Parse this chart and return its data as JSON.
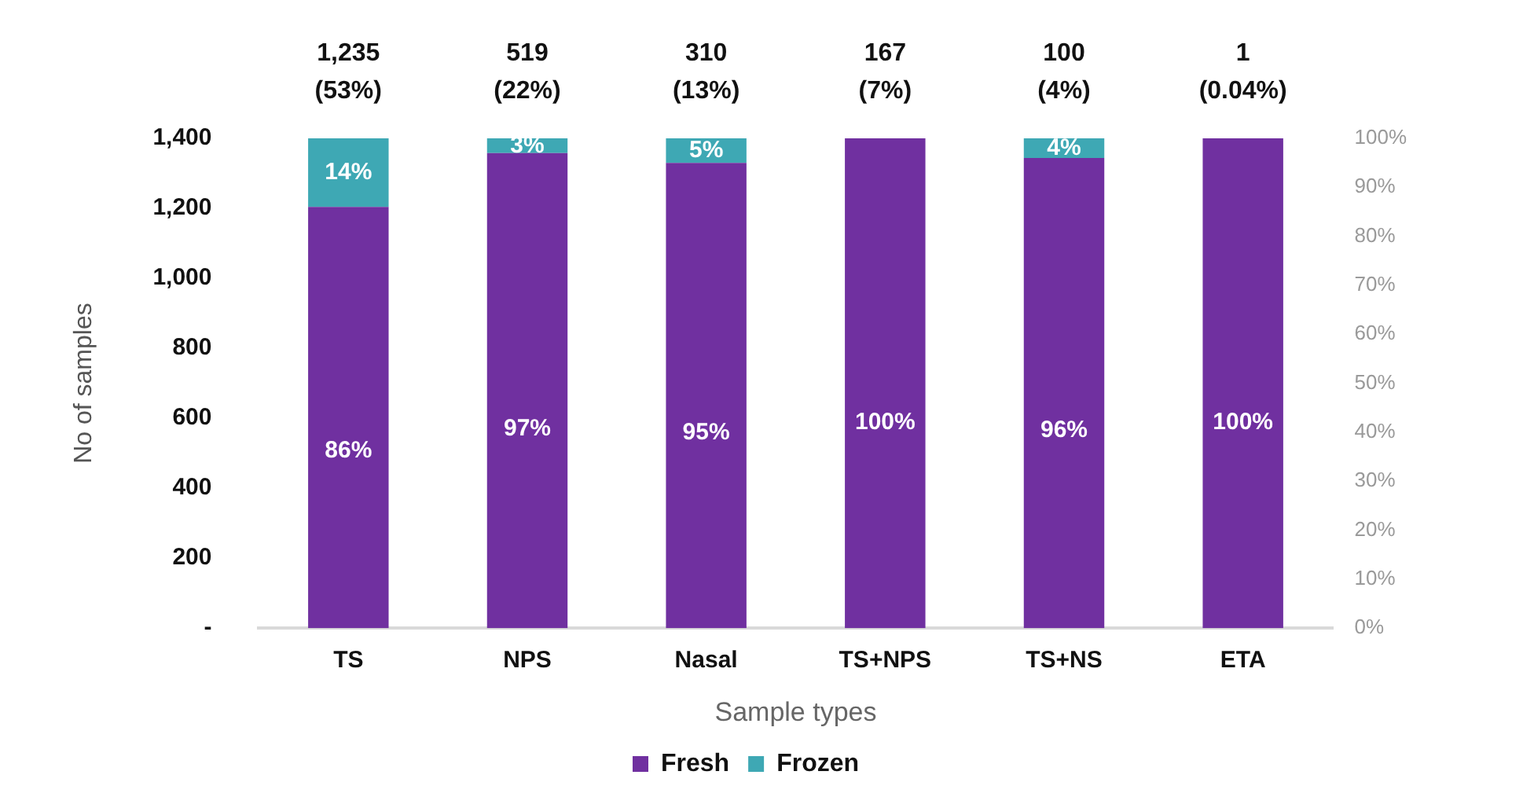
{
  "chart_data": {
    "type": "bar",
    "stacked": true,
    "xlabel": "Sample types",
    "ylabel": "No of samples",
    "categories": [
      "TS",
      "NPS",
      "Nasal",
      "TS+NPS",
      "TS+NS",
      "ETA"
    ],
    "series": [
      {
        "name": "Fresh",
        "color": "#7030a0",
        "axis": "y2",
        "values": [
          86,
          97,
          95,
          100,
          96,
          100
        ],
        "value_labels": [
          "86%",
          "97%",
          "95%",
          "100%",
          "96%",
          "100%"
        ]
      },
      {
        "name": "Frozen",
        "color": "#3ea8b4",
        "axis": "y2",
        "values": [
          14,
          3,
          5,
          0,
          4,
          0
        ],
        "value_labels": [
          "14%",
          "3%",
          "5%",
          null,
          "4%",
          null
        ]
      }
    ],
    "y2lim": [
      0,
      100
    ],
    "y2ticks": [
      {
        "value": 0,
        "label": "0%"
      },
      {
        "value": 10,
        "label": "10%"
      },
      {
        "value": 20,
        "label": "20%"
      },
      {
        "value": 30,
        "label": "30%"
      },
      {
        "value": 40,
        "label": "40%"
      },
      {
        "value": 50,
        "label": "50%"
      },
      {
        "value": 60,
        "label": "60%"
      },
      {
        "value": 70,
        "label": "70%"
      },
      {
        "value": 80,
        "label": "80%"
      },
      {
        "value": 90,
        "label": "90%"
      },
      {
        "value": 100,
        "label": "100%"
      }
    ],
    "ylim": [
      0,
      1400
    ],
    "yticks": [
      {
        "value": 0,
        "label": "-"
      },
      {
        "value": 200,
        "label": "200"
      },
      {
        "value": 400,
        "label": "400"
      },
      {
        "value": 600,
        "label": "600"
      },
      {
        "value": 800,
        "label": "800"
      },
      {
        "value": 1000,
        "label": "1,000"
      },
      {
        "value": 1200,
        "label": "1,200"
      },
      {
        "value": 1400,
        "label": "1,400"
      }
    ],
    "grid": false,
    "legend": "bottom",
    "annotations": [
      "1,235\n(53%)",
      "519\n(22%)",
      "310\n(13%)",
      "167\n(7%)",
      "100\n(4%)",
      "1\n(0.04%)"
    ]
  }
}
